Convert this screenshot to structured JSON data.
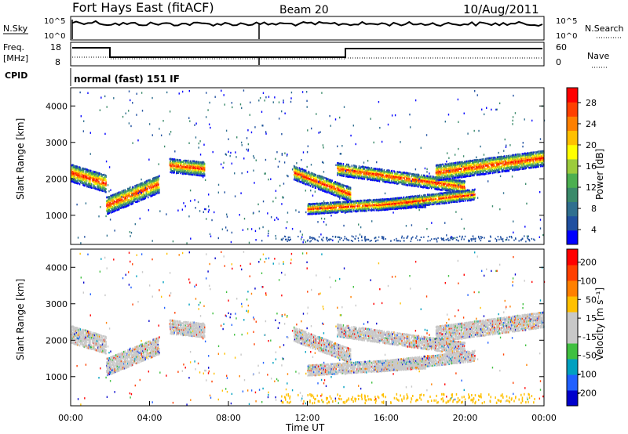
{
  "header": {
    "site": "Fort Hays East (fitACF)",
    "beam": "Beam 20",
    "date": "10/Aug/2011"
  },
  "top_panels": {
    "nsky_label": "N.Sky",
    "nsearch_label": "N.Search",
    "noise_ticks": [
      "10^5",
      "10^0"
    ],
    "freq_label": "Freq.",
    "freq_unit": "[MHz]",
    "freq_ticks": [
      "18",
      "8"
    ],
    "nave_label": "Nave",
    "nave_ticks": [
      "60",
      "0"
    ],
    "cpid_label": "CPID",
    "cpid_text": "normal (fast) 151 IF"
  },
  "chart_data": [
    {
      "type": "heatmap",
      "name": "power",
      "ylabel": "Slant Range [km]",
      "yticks": [
        "4000",
        "3000",
        "2000",
        "1000"
      ],
      "ylim": [
        200,
        4500
      ],
      "xlim": [
        0,
        24
      ],
      "colorbar_label": "Power [dB]",
      "colorbar_ticks": [
        "28",
        "24",
        "20",
        "16",
        "12",
        "8",
        "4"
      ],
      "colorbar_colors": [
        "#0000ff",
        "#1f4fa0",
        "#2f6f8f",
        "#3a8a6a",
        "#4caf50",
        "#9ccc3c",
        "#ffff00",
        "#ffc000",
        "#ff8000",
        "#ff4000",
        "#ff0000"
      ],
      "bands": [
        {
          "t": [
            0,
            1.8
          ],
          "r_center": [
            2200,
            1900
          ],
          "r_width": 500
        },
        {
          "t": [
            1.8,
            4.5
          ],
          "r_center": [
            1300,
            1900
          ],
          "r_width": 500
        },
        {
          "t": [
            5.0,
            6.8
          ],
          "r_center": [
            2400,
            2300
          ],
          "r_width": 400
        },
        {
          "t": [
            11.3,
            14.2
          ],
          "r_center": [
            2200,
            1600
          ],
          "r_width": 400
        },
        {
          "t": [
            12.0,
            18.0
          ],
          "r_center": [
            1200,
            1400
          ],
          "r_width": 300
        },
        {
          "t": [
            13.5,
            20.0
          ],
          "r_center": [
            2300,
            1800
          ],
          "r_width": 350
        },
        {
          "t": [
            15.5,
            20.5
          ],
          "r_center": [
            1300,
            1600
          ],
          "r_width": 300
        },
        {
          "t": [
            18.5,
            24.0
          ],
          "r_center": [
            2200,
            2600
          ],
          "r_width": 450
        }
      ]
    },
    {
      "type": "heatmap",
      "name": "velocity",
      "ylabel": "Slant Range [km]",
      "xlabel": "Time UT",
      "yticks": [
        "4000",
        "3000",
        "2000",
        "1000"
      ],
      "xticks": [
        "00:00",
        "04:00",
        "08:00",
        "12:00",
        "16:00",
        "20:00",
        "00:00"
      ],
      "ylim": [
        200,
        4500
      ],
      "xlim": [
        0,
        24
      ],
      "colorbar_label": "Velocity [m s⁻¹]",
      "colorbar_ticks": [
        "200",
        "100",
        "50",
        "15",
        "-15",
        "-50",
        "-100",
        "-200"
      ],
      "colorbar_colors": [
        "#0000cc",
        "#2060ff",
        "#00a0c0",
        "#40c040",
        "#c8c8c8",
        "#c8c8c8",
        "#ffc000",
        "#ff8000",
        "#ff4000",
        "#ff0000"
      ]
    }
  ]
}
